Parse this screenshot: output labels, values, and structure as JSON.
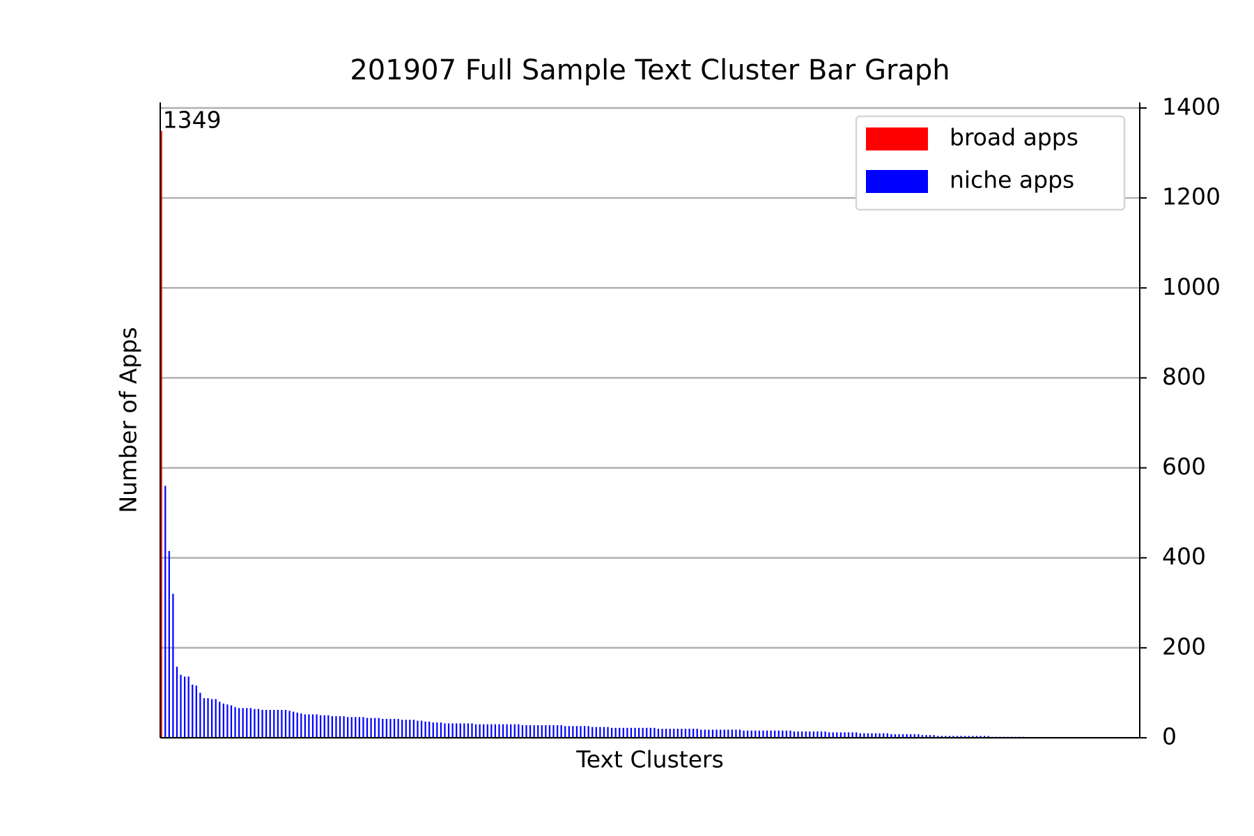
{
  "chart_data": {
    "type": "bar",
    "title": "201907 Full Sample Text Cluster Bar Graph",
    "x_label": "Text Clusters",
    "y_label": "Number of Apps",
    "series": [
      {
        "name": "broad apps",
        "color": "#ff0000",
        "values": [
          1349
        ]
      },
      {
        "name": "niche apps",
        "color": "#0000ff",
        "values": [
          560,
          415,
          320,
          158,
          140,
          136,
          136,
          118,
          116,
          100,
          88,
          88,
          86,
          86,
          80,
          76,
          74,
          72,
          68,
          66,
          66,
          66,
          66,
          64,
          64,
          62,
          62,
          62,
          62,
          62,
          62,
          62,
          60,
          58,
          56,
          54,
          52,
          52,
          52,
          52,
          50,
          50,
          50,
          48,
          48,
          48,
          48,
          46,
          46,
          46,
          46,
          46,
          44,
          44,
          44,
          44,
          42,
          42,
          42,
          42,
          42,
          40,
          40,
          40,
          40,
          38,
          38,
          36,
          36,
          34,
          34,
          34,
          32,
          32,
          32,
          32,
          32,
          32,
          32,
          32,
          30,
          30,
          30,
          30,
          30,
          30,
          30,
          30,
          30,
          30,
          30,
          30,
          28,
          28,
          28,
          28,
          28,
          28,
          28,
          28,
          28,
          28,
          28,
          26,
          26,
          26,
          26,
          26,
          26,
          26,
          24,
          24,
          24,
          24,
          24,
          22,
          22,
          22,
          22,
          22,
          22,
          22,
          22,
          22,
          22,
          22,
          22,
          20,
          20,
          20,
          20,
          20,
          20,
          20,
          20,
          20,
          20,
          20,
          18,
          18,
          18,
          18,
          18,
          18,
          18,
          18,
          18,
          18,
          18,
          16,
          16,
          16,
          16,
          16,
          16,
          16,
          16,
          16,
          16,
          16,
          16,
          16,
          14,
          14,
          14,
          14,
          14,
          14,
          14,
          14,
          14,
          12,
          12,
          12,
          12,
          12,
          12,
          12,
          12,
          10,
          10,
          10,
          10,
          10,
          10,
          10,
          10,
          8,
          8,
          8,
          8,
          8,
          8,
          8,
          8,
          6,
          6,
          6,
          6,
          4,
          4,
          4,
          4,
          4,
          4,
          4,
          4,
          4,
          4,
          4,
          4,
          4,
          4,
          2,
          2,
          2,
          2,
          2,
          2,
          2,
          2,
          2
        ]
      }
    ],
    "xlim": [
      -0.3,
      252
    ],
    "ylim": [
      0,
      1400
    ],
    "yticks": [
      0,
      200,
      400,
      600,
      800,
      1000,
      1200,
      1400
    ],
    "y_axis_side": "right",
    "grid": true,
    "legend": "upper right"
  }
}
